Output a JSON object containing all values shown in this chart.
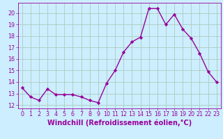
{
  "x": [
    0,
    1,
    2,
    3,
    4,
    5,
    6,
    7,
    8,
    9,
    10,
    11,
    12,
    13,
    14,
    15,
    16,
    17,
    18,
    19,
    20,
    21,
    22,
    23
  ],
  "y": [
    13.5,
    12.7,
    12.4,
    13.4,
    12.9,
    12.9,
    12.9,
    12.7,
    12.4,
    12.2,
    13.9,
    15.0,
    16.6,
    17.5,
    17.9,
    20.4,
    20.4,
    19.0,
    19.9,
    18.6,
    17.8,
    16.5,
    14.9,
    14.0
  ],
  "line_color": "#990099",
  "marker": "D",
  "marker_size": 2.2,
  "bg_color": "#cceeff",
  "grid_color": "#aaccbb",
  "xlabel": "Windchill (Refroidissement éolien,°C)",
  "xlabel_color": "#990099",
  "xlim": [
    -0.5,
    23.5
  ],
  "ylim": [
    11.7,
    20.9
  ],
  "yticks": [
    12,
    13,
    14,
    15,
    16,
    17,
    18,
    19,
    20
  ],
  "xticks": [
    0,
    1,
    2,
    3,
    4,
    5,
    6,
    7,
    8,
    9,
    10,
    11,
    12,
    13,
    14,
    15,
    16,
    17,
    18,
    19,
    20,
    21,
    22,
    23
  ],
  "tick_color": "#990099",
  "tick_label_fontsize": 5.8,
  "xlabel_fontsize": 7.0,
  "linewidth": 1.0
}
